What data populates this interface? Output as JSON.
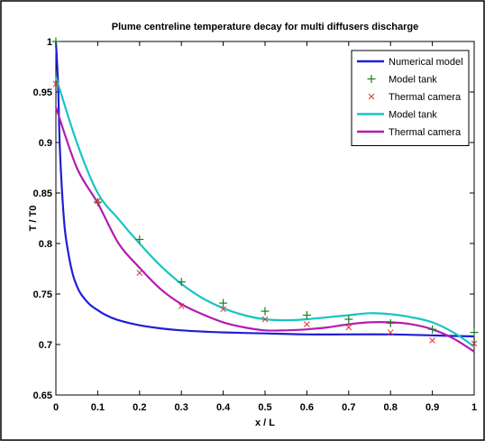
{
  "chart_data": {
    "type": "line",
    "title": "Plume centreline temperature decay for multi diffusers discharge",
    "xlabel": "x / L",
    "ylabel": "T / T0",
    "xlim": [
      0,
      1
    ],
    "ylim": [
      0.65,
      1
    ],
    "xticks": [
      0,
      0.1,
      0.2,
      0.3,
      0.4,
      0.5,
      0.6,
      0.7,
      0.8,
      0.9,
      1
    ],
    "yticks": [
      0.65,
      0.7,
      0.75,
      0.8,
      0.85,
      0.9,
      0.95,
      1
    ],
    "xtick_labels": [
      "0",
      "0.1",
      "0.2",
      "0.3",
      "0.4",
      "0.5",
      "0.6",
      "0.7",
      "0.8",
      "0.9",
      "1"
    ],
    "ytick_labels": [
      "0.65",
      "0.7",
      "0.75",
      "0.8",
      "0.85",
      "0.9",
      "0.95",
      "1"
    ],
    "grid": false,
    "legend_position": "top-right",
    "series": [
      {
        "name": "Numerical model",
        "kind": "line",
        "color": "#1f1fd6",
        "x": [
          0.0,
          0.005,
          0.01,
          0.02,
          0.03,
          0.04,
          0.05,
          0.06,
          0.08,
          0.1,
          0.12,
          0.15,
          0.2,
          0.25,
          0.3,
          0.4,
          0.5,
          0.6,
          0.7,
          0.8,
          0.9,
          1.0
        ],
        "y": [
          1.0,
          0.96,
          0.89,
          0.82,
          0.79,
          0.77,
          0.758,
          0.75,
          0.74,
          0.734,
          0.729,
          0.724,
          0.719,
          0.716,
          0.714,
          0.712,
          0.711,
          0.71,
          0.71,
          0.71,
          0.709,
          0.708
        ]
      },
      {
        "name": "Model tank",
        "kind": "marker",
        "marker": "plus",
        "color": "#1a7f1a",
        "x": [
          0.0,
          0.1,
          0.2,
          0.3,
          0.4,
          0.5,
          0.6,
          0.7,
          0.8,
          0.9,
          1.0
        ],
        "y": [
          1.0,
          0.841,
          0.804,
          0.762,
          0.741,
          0.733,
          0.729,
          0.725,
          0.721,
          0.715,
          0.712
        ]
      },
      {
        "name": "Thermal camera",
        "kind": "marker",
        "marker": "x",
        "color": "#e03030",
        "x": [
          0.0,
          0.1,
          0.2,
          0.3,
          0.4,
          0.5,
          0.6,
          0.7,
          0.8,
          0.9,
          1.0
        ],
        "y": [
          0.958,
          0.842,
          0.771,
          0.738,
          0.735,
          0.725,
          0.72,
          0.717,
          0.712,
          0.704,
          0.701
        ]
      },
      {
        "name": "Model tank",
        "kind": "line",
        "color": "#18c4c4",
        "x": [
          0.0,
          0.05,
          0.1,
          0.15,
          0.2,
          0.25,
          0.3,
          0.35,
          0.4,
          0.45,
          0.5,
          0.55,
          0.6,
          0.65,
          0.7,
          0.75,
          0.8,
          0.85,
          0.9,
          0.95,
          1.0
        ],
        "y": [
          0.965,
          0.9,
          0.85,
          0.824,
          0.8,
          0.778,
          0.76,
          0.746,
          0.736,
          0.729,
          0.725,
          0.724,
          0.725,
          0.727,
          0.729,
          0.731,
          0.73,
          0.727,
          0.722,
          0.712,
          0.698
        ]
      },
      {
        "name": "Thermal camera",
        "kind": "line",
        "color": "#b21cb2",
        "x": [
          0.0,
          0.05,
          0.1,
          0.15,
          0.2,
          0.25,
          0.3,
          0.35,
          0.4,
          0.45,
          0.5,
          0.55,
          0.6,
          0.65,
          0.7,
          0.75,
          0.8,
          0.85,
          0.9,
          0.95,
          1.0
        ],
        "y": [
          0.935,
          0.875,
          0.84,
          0.8,
          0.776,
          0.755,
          0.74,
          0.73,
          0.722,
          0.717,
          0.714,
          0.714,
          0.715,
          0.717,
          0.72,
          0.722,
          0.722,
          0.72,
          0.715,
          0.706,
          0.693
        ]
      }
    ]
  }
}
